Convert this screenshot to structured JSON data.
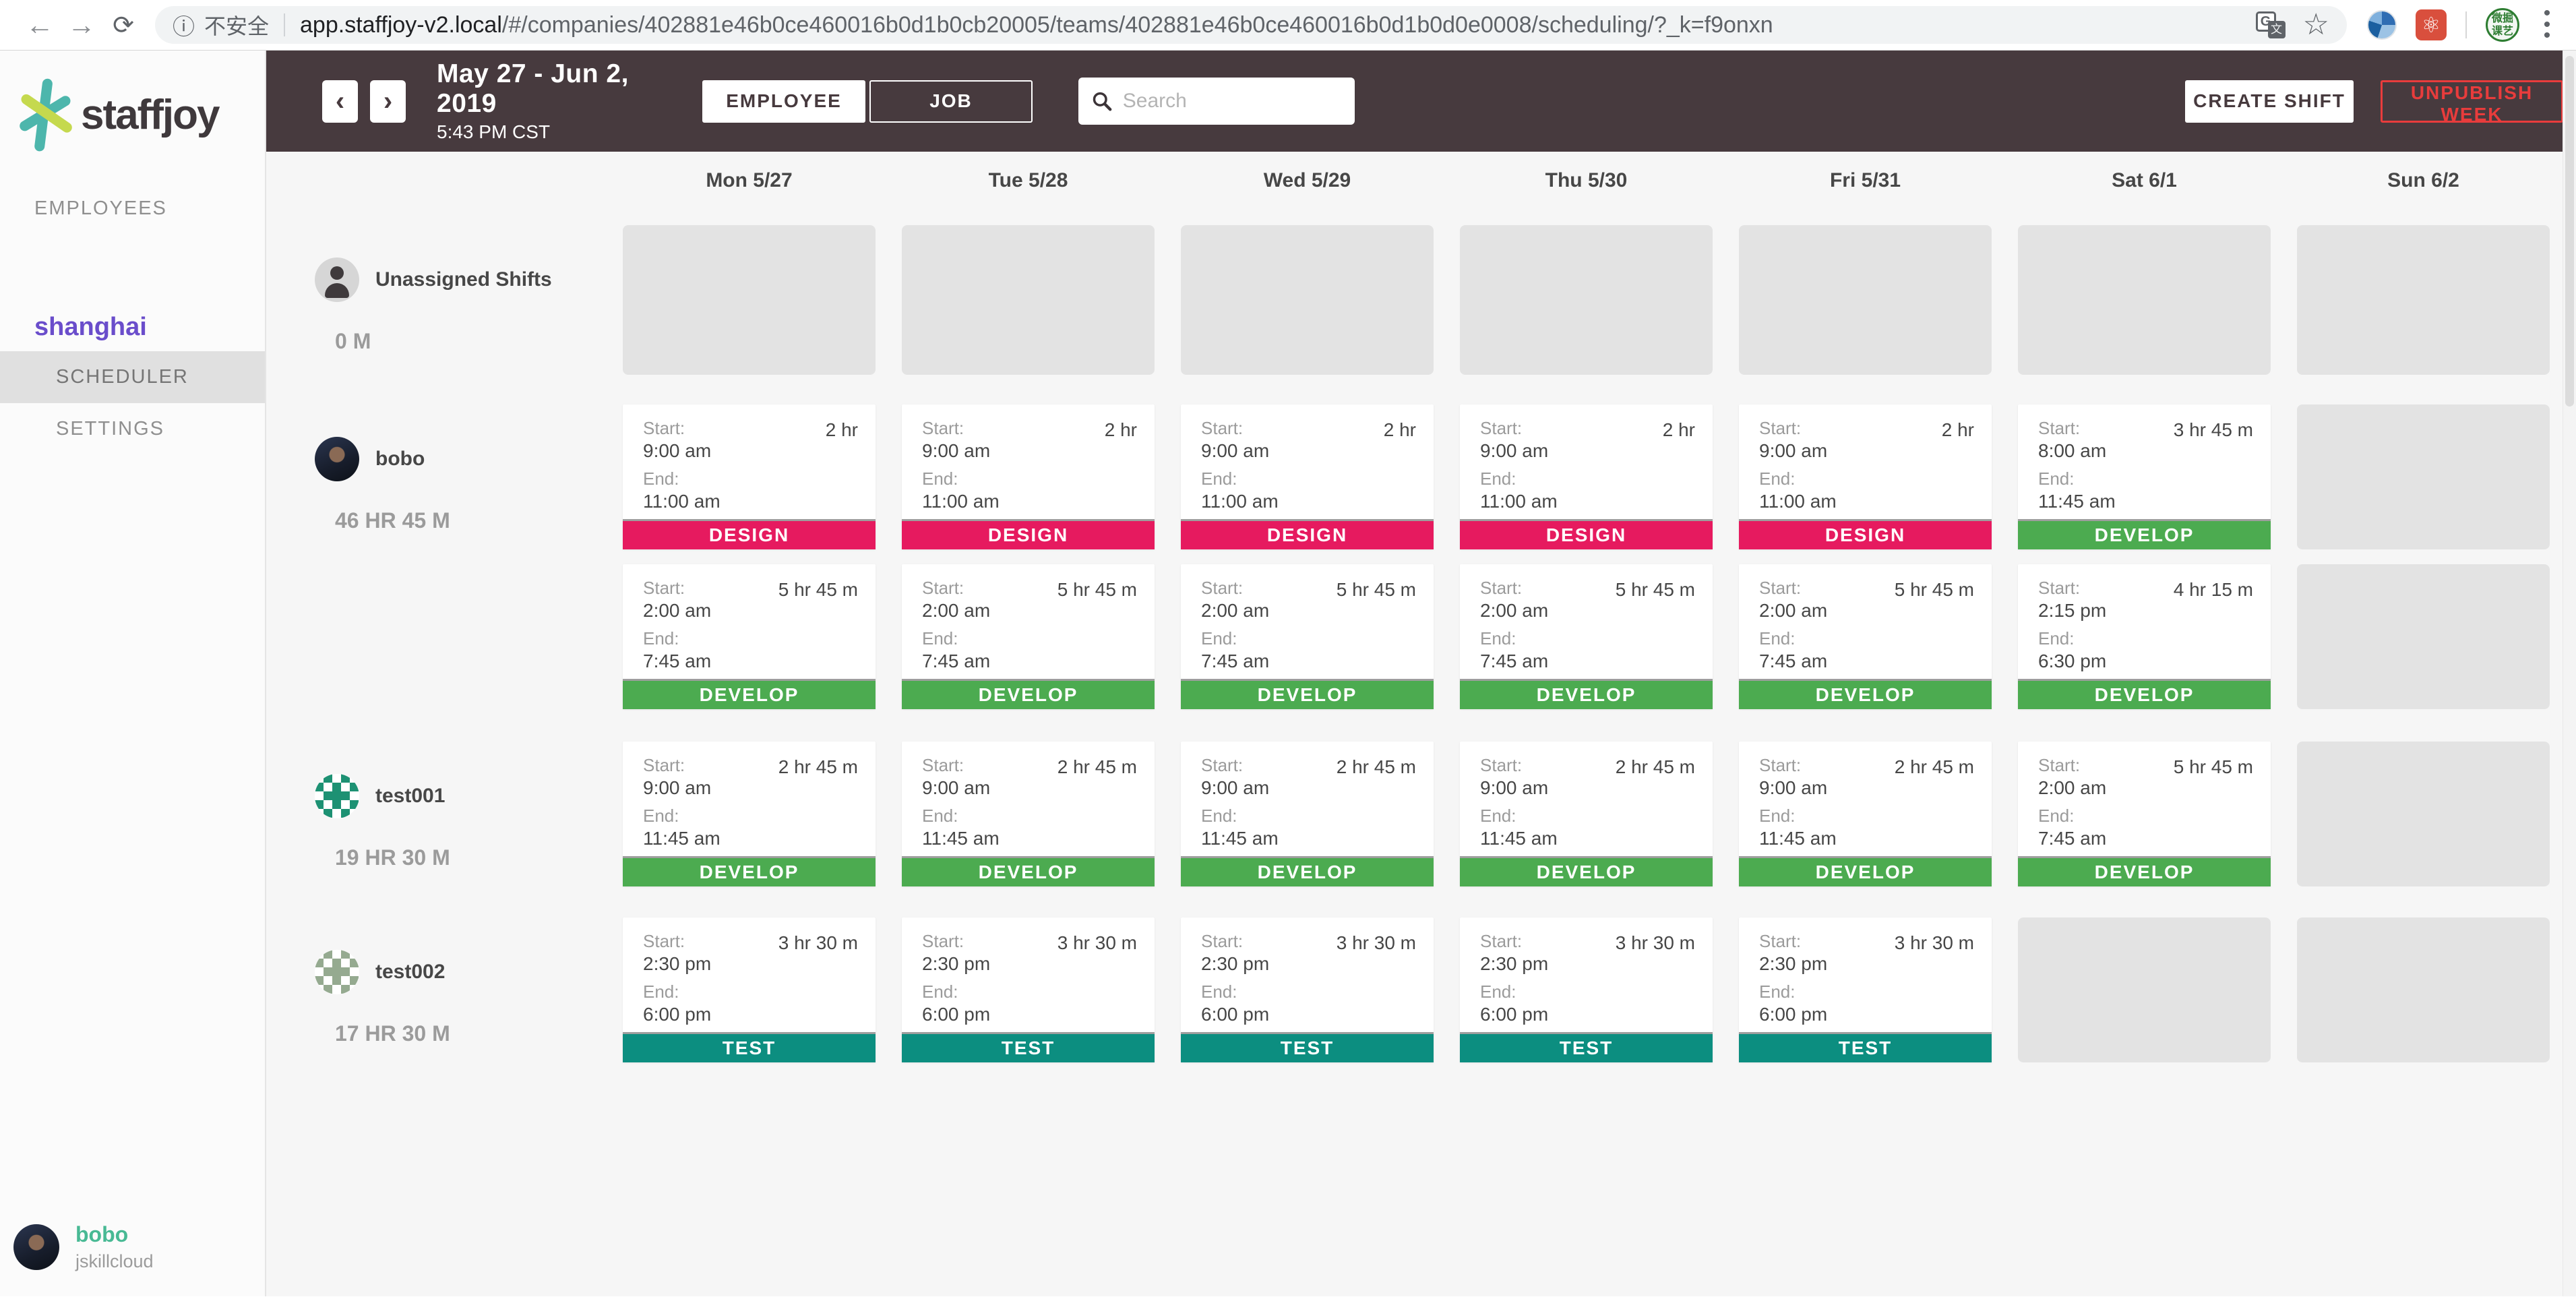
{
  "browser": {
    "security_label": "不安全",
    "url_domain": "app.staffjoy-v2.local",
    "url_path": "/#/companies/402881e46b0ce460016b0d1b0cb20005/teams/402881e46b0ce460016b0d1b0d0e0008/scheduling/?_k=f9onxn",
    "extension_green_text": "微掘课艺"
  },
  "brand": {
    "logo_text": "staffjoy"
  },
  "sidebar": {
    "employees_label": "EMPLOYEES",
    "team_name": "shanghai",
    "scheduler_label": "SCHEDULER",
    "settings_label": "SETTINGS",
    "user": {
      "name": "bobo",
      "company": "jskillcloud"
    }
  },
  "toolbar": {
    "week_label": "May 27 - Jun 2, 2019",
    "time_label": "5:43 PM CST",
    "employee_toggle": "EMPLOYEE",
    "job_toggle": "JOB",
    "search_placeholder": "Search",
    "create_shift_label": "CREATE SHIFT",
    "unpublish_label": "UNPUBLISH WEEK"
  },
  "colors": {
    "DESIGN": "#e61a5f",
    "DEVELOP": "#4cab50",
    "TEST": "#0c8e80"
  },
  "schedule": {
    "days": [
      "Mon 5/27",
      "Tue 5/28",
      "Wed 5/29",
      "Thu 5/30",
      "Fri 5/31",
      "Sat 6/1",
      "Sun 6/2"
    ],
    "start_label": "Start:",
    "end_label": "End:",
    "rows": [
      {
        "key": "unassigned",
        "name": "Unassigned Shifts",
        "hours": "0 M",
        "avatar": "person",
        "tall": true,
        "lanes": [
          [
            {
              "empty": true
            },
            {
              "empty": true
            },
            {
              "empty": true
            },
            {
              "empty": true
            },
            {
              "empty": true
            },
            {
              "empty": true
            },
            {
              "empty": true
            }
          ]
        ]
      },
      {
        "key": "bobo",
        "name": "bobo",
        "hours": "46 HR 45 M",
        "avatar": "photo-bobo",
        "tall": false,
        "lanes": [
          [
            {
              "start": "9:00 am",
              "end": "11:00 am",
              "duration": "2 hr",
              "job": "DESIGN"
            },
            {
              "start": "9:00 am",
              "end": "11:00 am",
              "duration": "2 hr",
              "job": "DESIGN"
            },
            {
              "start": "9:00 am",
              "end": "11:00 am",
              "duration": "2 hr",
              "job": "DESIGN"
            },
            {
              "start": "9:00 am",
              "end": "11:00 am",
              "duration": "2 hr",
              "job": "DESIGN"
            },
            {
              "start": "9:00 am",
              "end": "11:00 am",
              "duration": "2 hr",
              "job": "DESIGN"
            },
            {
              "start": "8:00 am",
              "end": "11:45 am",
              "duration": "3 hr 45 m",
              "job": "DEVELOP"
            },
            {
              "empty": true
            }
          ],
          [
            {
              "start": "2:00 am",
              "end": "7:45 am",
              "duration": "5 hr 45 m",
              "job": "DEVELOP"
            },
            {
              "start": "2:00 am",
              "end": "7:45 am",
              "duration": "5 hr 45 m",
              "job": "DEVELOP"
            },
            {
              "start": "2:00 am",
              "end": "7:45 am",
              "duration": "5 hr 45 m",
              "job": "DEVELOP"
            },
            {
              "start": "2:00 am",
              "end": "7:45 am",
              "duration": "5 hr 45 m",
              "job": "DEVELOP"
            },
            {
              "start": "2:00 am",
              "end": "7:45 am",
              "duration": "5 hr 45 m",
              "job": "DEVELOP"
            },
            {
              "start": "2:15 pm",
              "end": "6:30 pm",
              "duration": "4 hr 15 m",
              "job": "DEVELOP"
            },
            {
              "empty": true
            }
          ]
        ]
      },
      {
        "key": "test001",
        "name": "test001",
        "hours": "19 HR 30 M",
        "avatar": "identicon-green",
        "tall": false,
        "lanes": [
          [
            {
              "start": "9:00 am",
              "end": "11:45 am",
              "duration": "2 hr 45 m",
              "job": "DEVELOP"
            },
            {
              "start": "9:00 am",
              "end": "11:45 am",
              "duration": "2 hr 45 m",
              "job": "DEVELOP"
            },
            {
              "start": "9:00 am",
              "end": "11:45 am",
              "duration": "2 hr 45 m",
              "job": "DEVELOP"
            },
            {
              "start": "9:00 am",
              "end": "11:45 am",
              "duration": "2 hr 45 m",
              "job": "DEVELOP"
            },
            {
              "start": "9:00 am",
              "end": "11:45 am",
              "duration": "2 hr 45 m",
              "job": "DEVELOP"
            },
            {
              "start": "2:00 am",
              "end": "7:45 am",
              "duration": "5 hr 45 m",
              "job": "DEVELOP"
            },
            {
              "empty": true
            }
          ]
        ]
      },
      {
        "key": "test002",
        "name": "test002",
        "hours": "17 HR 30 M",
        "avatar": "identicon-pale",
        "tall": false,
        "lanes": [
          [
            {
              "start": "2:30 pm",
              "end": "6:00 pm",
              "duration": "3 hr 30 m",
              "job": "TEST"
            },
            {
              "start": "2:30 pm",
              "end": "6:00 pm",
              "duration": "3 hr 30 m",
              "job": "TEST"
            },
            {
              "start": "2:30 pm",
              "end": "6:00 pm",
              "duration": "3 hr 30 m",
              "job": "TEST"
            },
            {
              "start": "2:30 pm",
              "end": "6:00 pm",
              "duration": "3 hr 30 m",
              "job": "TEST"
            },
            {
              "start": "2:30 pm",
              "end": "6:00 pm",
              "duration": "3 hr 30 m",
              "job": "TEST"
            },
            {
              "empty": true
            },
            {
              "empty": true
            }
          ]
        ]
      }
    ]
  }
}
